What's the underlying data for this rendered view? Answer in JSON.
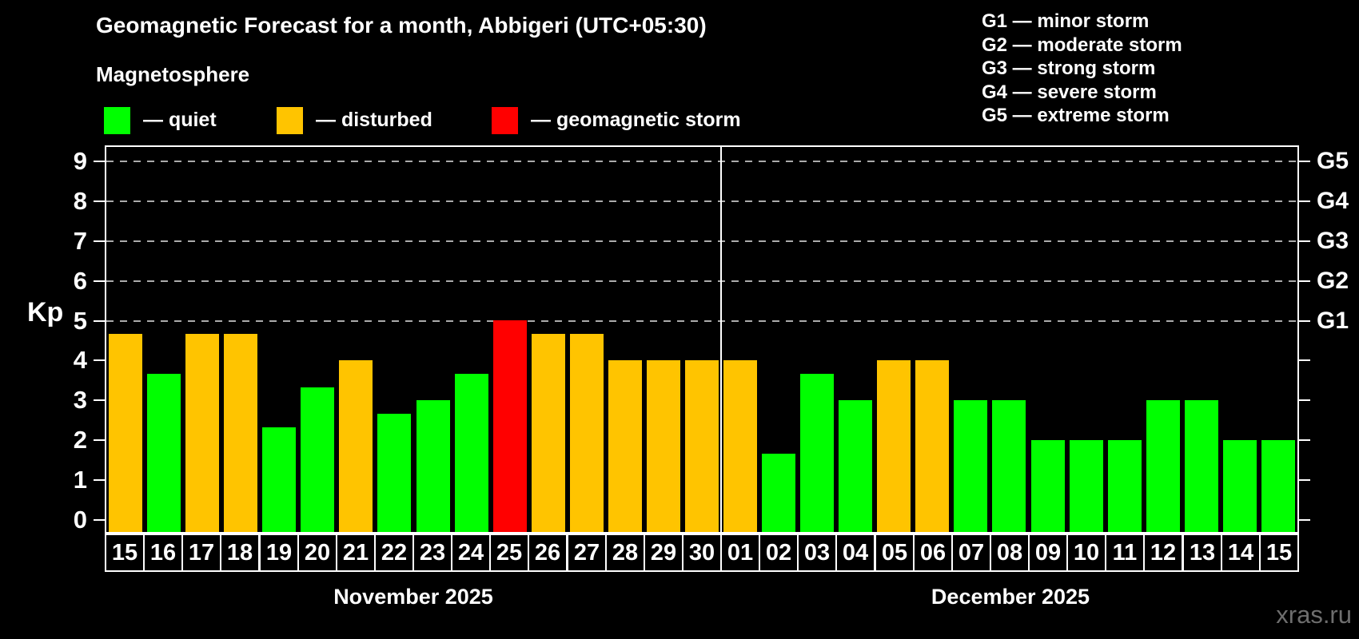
{
  "title": "Geomagnetic Forecast for a month, Abbigeri (UTC+05:30)",
  "subtitle": "Magnetosphere",
  "watermark": "xras.ru",
  "colors": {
    "quiet": "#00ff00",
    "disturbed": "#ffc400",
    "storm": "#ff0000",
    "background": "#000000",
    "grid": "#ababab",
    "axis": "#ffffff",
    "watermark": "#6e6e6e"
  },
  "legend": [
    {
      "status": "quiet",
      "label": "— quiet"
    },
    {
      "status": "disturbed",
      "label": "— disturbed"
    },
    {
      "status": "storm",
      "label": "— geomagnetic storm"
    }
  ],
  "g_scale_legend": [
    "G1 — minor storm",
    "G2 — moderate storm",
    "G3 — strong storm",
    "G4 — severe storm",
    "G5 — extreme storm"
  ],
  "chart_data": {
    "type": "bar",
    "ylabel": "Kp",
    "ylim": [
      0,
      9
    ],
    "y_ticks": [
      0,
      1,
      2,
      3,
      4,
      5,
      6,
      7,
      8,
      9
    ],
    "gridlines_kp": [
      5,
      6,
      7,
      8,
      9
    ],
    "right_axis": [
      {
        "kp": 5,
        "label": "G1"
      },
      {
        "kp": 6,
        "label": "G2"
      },
      {
        "kp": 7,
        "label": "G3"
      },
      {
        "kp": 8,
        "label": "G4"
      },
      {
        "kp": 9,
        "label": "G5"
      }
    ],
    "legend_position": "top",
    "grid": "dashed, G-levels only",
    "months": [
      {
        "label": "November 2025",
        "days": 16
      },
      {
        "label": "December 2025",
        "days": 15
      }
    ],
    "series": [
      {
        "day": "15",
        "kp": 4.67,
        "status": "disturbed"
      },
      {
        "day": "16",
        "kp": 3.67,
        "status": "quiet"
      },
      {
        "day": "17",
        "kp": 4.67,
        "status": "disturbed"
      },
      {
        "day": "18",
        "kp": 4.67,
        "status": "disturbed"
      },
      {
        "day": "19",
        "kp": 2.33,
        "status": "quiet"
      },
      {
        "day": "20",
        "kp": 3.33,
        "status": "quiet"
      },
      {
        "day": "21",
        "kp": 4.0,
        "status": "disturbed"
      },
      {
        "day": "22",
        "kp": 2.67,
        "status": "quiet"
      },
      {
        "day": "23",
        "kp": 3.0,
        "status": "quiet"
      },
      {
        "day": "24",
        "kp": 3.67,
        "status": "quiet"
      },
      {
        "day": "25",
        "kp": 5.0,
        "status": "storm"
      },
      {
        "day": "26",
        "kp": 4.67,
        "status": "disturbed"
      },
      {
        "day": "27",
        "kp": 4.67,
        "status": "disturbed"
      },
      {
        "day": "28",
        "kp": 4.0,
        "status": "disturbed"
      },
      {
        "day": "29",
        "kp": 4.0,
        "status": "disturbed"
      },
      {
        "day": "30",
        "kp": 4.0,
        "status": "disturbed"
      },
      {
        "day": "01",
        "kp": 4.0,
        "status": "disturbed"
      },
      {
        "day": "02",
        "kp": 1.67,
        "status": "quiet"
      },
      {
        "day": "03",
        "kp": 3.67,
        "status": "quiet"
      },
      {
        "day": "04",
        "kp": 3.0,
        "status": "quiet"
      },
      {
        "day": "05",
        "kp": 4.0,
        "status": "disturbed"
      },
      {
        "day": "06",
        "kp": 4.0,
        "status": "disturbed"
      },
      {
        "day": "07",
        "kp": 3.0,
        "status": "quiet"
      },
      {
        "day": "08",
        "kp": 3.0,
        "status": "quiet"
      },
      {
        "day": "09",
        "kp": 2.0,
        "status": "quiet"
      },
      {
        "day": "10",
        "kp": 2.0,
        "status": "quiet"
      },
      {
        "day": "11",
        "kp": 2.0,
        "status": "quiet"
      },
      {
        "day": "12",
        "kp": 3.0,
        "status": "quiet"
      },
      {
        "day": "13",
        "kp": 3.0,
        "status": "quiet"
      },
      {
        "day": "14",
        "kp": 2.0,
        "status": "quiet"
      },
      {
        "day": "15",
        "kp": 2.0,
        "status": "quiet"
      }
    ]
  }
}
